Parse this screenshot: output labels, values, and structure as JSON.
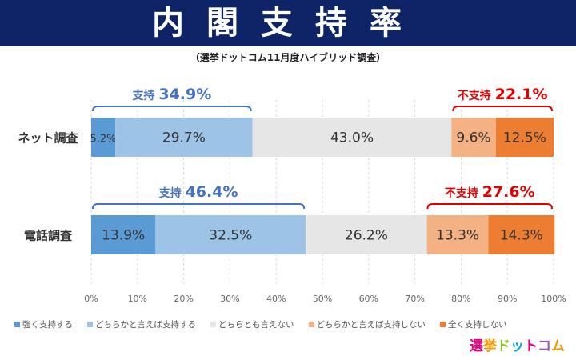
{
  "title": "内閣支持率",
  "subtitle": "（選挙ドットコム11月度ハイブリッド調査）",
  "logo": "選挙ドットコム",
  "chart_data": {
    "type": "bar",
    "orientation": "horizontal",
    "stacked": true,
    "categories": [
      "ネット調査",
      "電話調査"
    ],
    "series": [
      {
        "name": "強く支持する",
        "color": "#5b9bd5",
        "values": [
          5.2,
          13.9
        ]
      },
      {
        "name": "どちらかと言えば支持する",
        "color": "#9dc3e6",
        "values": [
          29.7,
          32.5
        ]
      },
      {
        "name": "どちらとも言えない",
        "color": "#e7e6e6",
        "values": [
          43.0,
          26.2
        ]
      },
      {
        "name": "どちらかと言えば支持しない",
        "color": "#f4b183",
        "values": [
          9.6,
          13.3
        ]
      },
      {
        "name": "全く支持しない",
        "color": "#ed7d31",
        "values": [
          12.5,
          14.3
        ]
      }
    ],
    "data_labels": [
      [
        "5.2%",
        "29.7%",
        "43.0%",
        "9.6%",
        "12.5%"
      ],
      [
        "13.9%",
        "32.5%",
        "26.2%",
        "13.3%",
        "14.3%"
      ]
    ],
    "annotations": [
      {
        "label": "支持",
        "value": "34.9%",
        "color": "#4472c4"
      },
      {
        "label": "不支持",
        "value": "22.1%",
        "color": "#e00000"
      },
      {
        "label": "支持",
        "value": "46.4%",
        "color": "#4472c4"
      },
      {
        "label": "不支持",
        "value": "27.6%",
        "color": "#e00000"
      }
    ],
    "xticks": [
      "0%",
      "10%",
      "20%",
      "30%",
      "40%",
      "50%",
      "60%",
      "70%",
      "80%",
      "90%",
      "100%"
    ],
    "xlim": [
      0,
      100
    ],
    "grid": true,
    "legend": "bottom"
  }
}
